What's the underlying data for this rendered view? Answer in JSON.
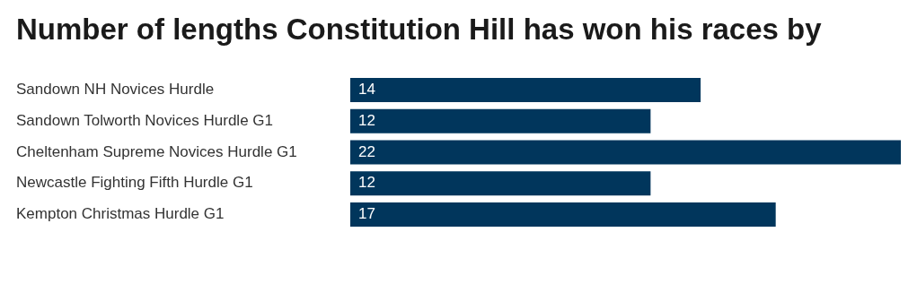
{
  "chart_data": {
    "type": "bar",
    "orientation": "horizontal",
    "title": "Number of lengths Constitution Hill has won his races by",
    "categories": [
      "Sandown NH Novices Hurdle",
      "Sandown Tolworth Novices Hurdle G1",
      "Cheltenham Supreme Novices Hurdle G1",
      "Newcastle Fighting Fifth Hurdle G1",
      "Kempton Christmas Hurdle G1"
    ],
    "values": [
      14,
      12,
      22,
      12,
      17
    ],
    "color": "#01365c",
    "xlim": [
      0,
      22
    ],
    "data_labels": true,
    "legend": false,
    "tick_labels": "y"
  }
}
